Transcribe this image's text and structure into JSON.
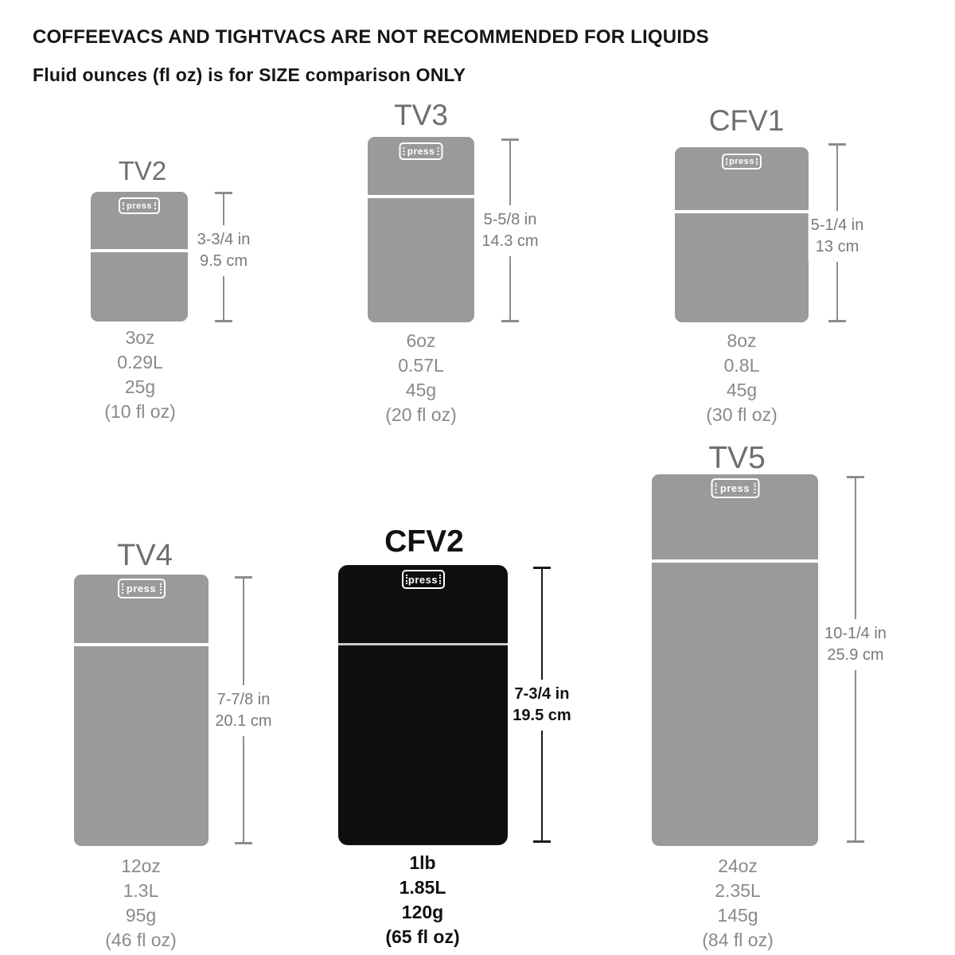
{
  "header": {
    "line1": "COFFEEVACS AND TIGHTVACS ARE NOT RECOMMENDED FOR LIQUIDS",
    "line2": "Fluid ounces (fl oz) is for SIZE comparison ONLY"
  },
  "colors": {
    "container_gray": "#9a9a9a",
    "container_black": "#0e0e0e",
    "divider_on_black": "#cccccc",
    "title_gray": "#6e6e6e",
    "dim_gray": "#7a7a7a",
    "spec_gray": "#8a8a8a",
    "text_black": "#111111"
  },
  "products": [
    {
      "name": "TV2",
      "press_label": "press",
      "size_in": "3-3/4 in",
      "size_cm": "9.5 cm",
      "weight": "3oz",
      "volume": "0.29L",
      "grams": "25g",
      "fl_oz": "(10 fl oz)",
      "variant": "gray"
    },
    {
      "name": "TV3",
      "press_label": "press",
      "size_in": "5-5/8 in",
      "size_cm": "14.3 cm",
      "weight": "6oz",
      "volume": "0.57L",
      "grams": "45g",
      "fl_oz": "(20 fl oz)",
      "variant": "gray"
    },
    {
      "name": "CFV1",
      "press_label": "press",
      "size_in": "5-1/4 in",
      "size_cm": "13 cm",
      "weight": "8oz",
      "volume": "0.8L",
      "grams": "45g",
      "fl_oz": "(30 fl oz)",
      "variant": "gray"
    },
    {
      "name": "TV4",
      "press_label": "press",
      "size_in": "7-7/8 in",
      "size_cm": "20.1 cm",
      "weight": "12oz",
      "volume": "1.3L",
      "grams": "95g",
      "fl_oz": "(46 fl oz)",
      "variant": "gray"
    },
    {
      "name": "CFV2",
      "press_label": "press",
      "size_in": "7-3/4 in",
      "size_cm": "19.5 cm",
      "weight": "1lb",
      "volume": "1.85L",
      "grams": "120g",
      "fl_oz": "(65 fl oz)",
      "variant": "black"
    },
    {
      "name": "TV5",
      "press_label": "press",
      "size_in": "10-1/4 in",
      "size_cm": "25.9 cm",
      "weight": "24oz",
      "volume": "2.35L",
      "grams": "145g",
      "fl_oz": "(84 fl oz)",
      "variant": "gray"
    }
  ]
}
